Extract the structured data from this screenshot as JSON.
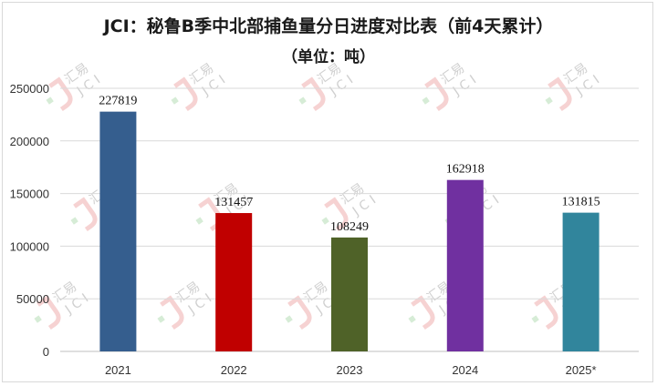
{
  "header": {
    "title": "JCI：秘鲁B季中北部捕鱼量分日进度对比表（前4天累计）",
    "subtitle": "（单位：吨）"
  },
  "watermark": {
    "brand": "汇易",
    "letters": "JCI"
  },
  "chart_data": {
    "type": "bar",
    "categories": [
      "2021",
      "2022",
      "2023",
      "2024",
      "2025*"
    ],
    "values": [
      227819,
      131457,
      108249,
      162918,
      131815
    ],
    "colors": [
      "#355e8e",
      "#c00000",
      "#4f6228",
      "#7030a0",
      "#31859c"
    ],
    "y_ticks": [
      "0",
      "50000",
      "100000",
      "150000",
      "200000",
      "250000"
    ],
    "ylim": [
      0,
      250000
    ],
    "grid": true,
    "legend": "none"
  }
}
